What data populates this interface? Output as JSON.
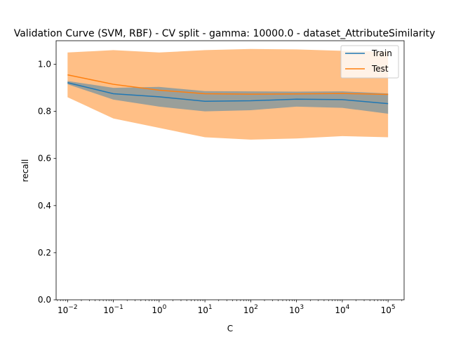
{
  "chart_data": {
    "type": "line",
    "title": "Validation Curve (SVM, RBF) - CV split - gamma: 10000.0 - dataset_AttributeSimilarity",
    "xlabel": "C",
    "ylabel": "recall",
    "x_scale": "log",
    "x": [
      0.01,
      0.1,
      1,
      10,
      100,
      1000,
      10000,
      100000
    ],
    "x_tick_labels": [
      {
        "base": "10",
        "exp": "−2"
      },
      {
        "base": "10",
        "exp": "−1"
      },
      {
        "base": "10",
        "exp": "0"
      },
      {
        "base": "10",
        "exp": "1"
      },
      {
        "base": "10",
        "exp": "2"
      },
      {
        "base": "10",
        "exp": "3"
      },
      {
        "base": "10",
        "exp": "4"
      },
      {
        "base": "10",
        "exp": "5"
      }
    ],
    "y_ticks": [
      0.0,
      0.2,
      0.4,
      0.6,
      0.8,
      1.0
    ],
    "y_tick_labels": [
      "0.0",
      "0.2",
      "0.4",
      "0.6",
      "0.8",
      "1.0"
    ],
    "xlim_exp": [
      -2.25,
      5.35
    ],
    "ylim": [
      0.0,
      1.1
    ],
    "grid": false,
    "legend_position": "top-right",
    "series": [
      {
        "name": "Train",
        "color": "#1f77b4",
        "values": [
          0.922,
          0.875,
          0.862,
          0.843,
          0.845,
          0.852,
          0.85,
          0.833
        ],
        "band_lower": [
          0.915,
          0.85,
          0.82,
          0.8,
          0.805,
          0.82,
          0.815,
          0.79
        ],
        "band_upper": [
          0.929,
          0.9,
          0.904,
          0.886,
          0.885,
          0.884,
          0.885,
          0.876
        ]
      },
      {
        "name": "Test",
        "color": "#ff7f0e",
        "values": [
          0.955,
          0.915,
          0.89,
          0.875,
          0.873,
          0.874,
          0.876,
          0.872
        ],
        "band_lower": [
          0.86,
          0.77,
          0.73,
          0.69,
          0.68,
          0.685,
          0.695,
          0.69
        ],
        "band_upper": [
          1.05,
          1.06,
          1.05,
          1.06,
          1.065,
          1.063,
          1.057,
          1.054
        ]
      }
    ]
  }
}
